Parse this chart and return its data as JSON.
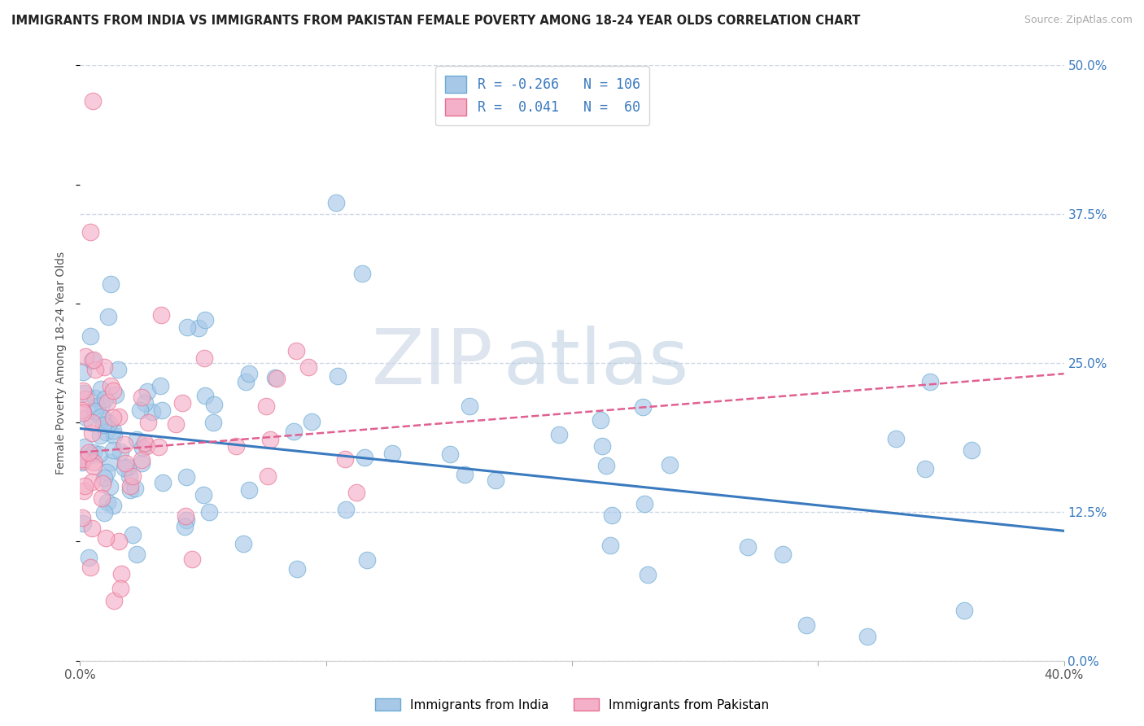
{
  "title": "IMMIGRANTS FROM INDIA VS IMMIGRANTS FROM PAKISTAN FEMALE POVERTY AMONG 18-24 YEAR OLDS CORRELATION CHART",
  "source": "Source: ZipAtlas.com",
  "ylabel": "Female Poverty Among 18-24 Year Olds",
  "xlim": [
    0.0,
    0.4
  ],
  "ylim": [
    0.0,
    0.5
  ],
  "xticks": [
    0.0,
    0.1,
    0.2,
    0.3,
    0.4
  ],
  "xtick_labels": [
    "0.0%",
    "",
    "",
    "",
    "40.0%"
  ],
  "yticks": [
    0.0,
    0.125,
    0.25,
    0.375,
    0.5
  ],
  "ytick_labels": [
    "0.0%",
    "12.5%",
    "25.0%",
    "37.5%",
    "50.0%"
  ],
  "india_color": "#a8c8e8",
  "india_edge_color": "#6aaad4",
  "pakistan_color": "#f4b0c8",
  "pakistan_edge_color": "#e87090",
  "india_line_color": "#3a7abf",
  "pakistan_line_color": "#e06090",
  "india_R": -0.266,
  "india_N": 106,
  "pakistan_R": 0.041,
  "pakistan_N": 60,
  "watermark_zip": "ZIP",
  "watermark_atlas": "atlas",
  "background_color": "#ffffff",
  "grid_color": "#d0d8e8",
  "india_line_intercept": 0.195,
  "india_line_slope": -0.215,
  "pakistan_line_intercept": 0.175,
  "pakistan_line_slope": 0.165
}
